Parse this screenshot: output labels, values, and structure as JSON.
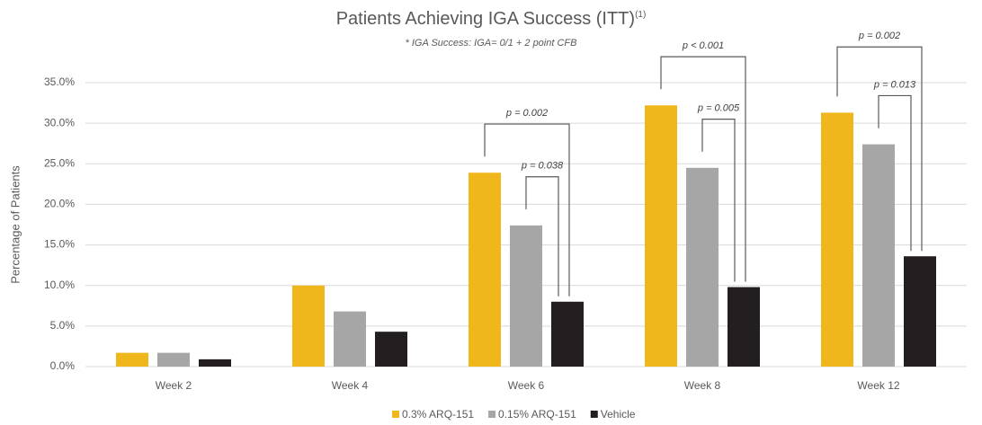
{
  "chart_data": {
    "type": "bar",
    "title": "Patients Achieving IGA Success (ITT)",
    "title_superscript": "(1)",
    "subtitle": "* IGA Success:  IGA= 0/1 + 2 point CFB",
    "y_label": "Percentage of Patients",
    "categories": [
      "Week 2",
      "Week 4",
      "Week 6",
      "Week 8",
      "Week 12"
    ],
    "series": [
      {
        "name": "0.3% ARQ-151",
        "color": "#f0b71c",
        "values": [
          1.7,
          10.0,
          23.9,
          32.2,
          31.3
        ]
      },
      {
        "name": "0.15% ARQ-151",
        "color": "#a6a6a6",
        "values": [
          1.7,
          6.8,
          17.4,
          24.5,
          27.4
        ]
      },
      {
        "name": "Vehicle",
        "color": "#231f20",
        "values": [
          0.9,
          4.3,
          8.0,
          9.8,
          13.6
        ]
      }
    ],
    "ylim": [
      0,
      35
    ],
    "yticks": [
      {
        "value": 0,
        "label": "0.0%"
      },
      {
        "value": 5,
        "label": "5.0%"
      },
      {
        "value": 10,
        "label": "10.0%"
      },
      {
        "value": 15,
        "label": "15.0%"
      },
      {
        "value": 20,
        "label": "20.0%"
      },
      {
        "value": 25,
        "label": "25.0%"
      },
      {
        "value": 30,
        "label": "30.0%"
      },
      {
        "value": 35,
        "label": "35.0%"
      }
    ],
    "grid": true,
    "legend": "bottom",
    "annotations": [
      {
        "text": "p = 0.038",
        "category": "Week 6",
        "from": "0.15% ARQ-151",
        "to": "Vehicle"
      },
      {
        "text": "p = 0.002",
        "category": "Week 6",
        "from": "0.3% ARQ-151",
        "to": "Vehicle"
      },
      {
        "text": "p = 0.005",
        "category": "Week 8",
        "from": "0.15% ARQ-151",
        "to": "Vehicle"
      },
      {
        "text": "p < 0.001",
        "category": "Week 8",
        "from": "0.3% ARQ-151",
        "to": "Vehicle"
      },
      {
        "text": "p = 0.013",
        "category": "Week 12",
        "from": "0.15% ARQ-151",
        "to": "Vehicle"
      },
      {
        "text": "p = 0.002",
        "category": "Week 12",
        "from": "0.3% ARQ-151",
        "to": "Vehicle"
      }
    ]
  }
}
